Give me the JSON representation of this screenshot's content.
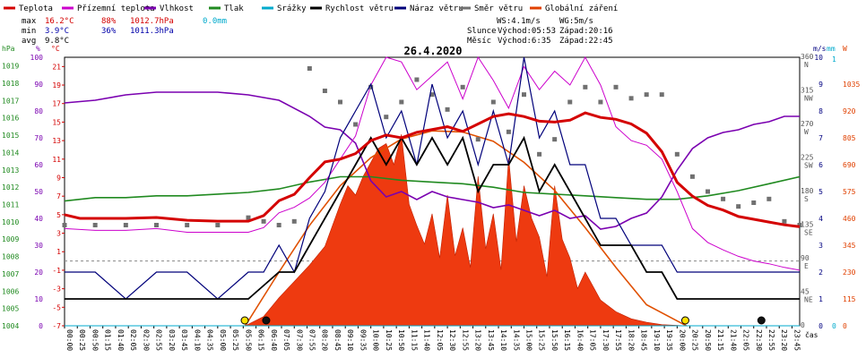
{
  "chart_data": {
    "type": "line",
    "title": "26.4.2020",
    "legend": [
      {
        "name": "Teplota",
        "color": "#d40000"
      },
      {
        "name": "Přízemní teplota",
        "color": "#cc00cc"
      },
      {
        "name": "Vlhkost",
        "color": "#7a00b0"
      },
      {
        "name": "Tlak",
        "color": "#208a20"
      },
      {
        "name": "Srážky",
        "color": "#00aacc"
      },
      {
        "name": "Rychlost větru",
        "color": "#000000"
      },
      {
        "name": "Náraz větru",
        "color": "#00007a"
      },
      {
        "name": "Směr větru",
        "color": "#707070"
      },
      {
        "name": "Globální záření",
        "color": "#e04000"
      }
    ],
    "stats": {
      "max": {
        "label": "max",
        "temp": "16.2°C",
        "hum": "88%",
        "press": "1012.7hPa",
        "rain": "0.0mm"
      },
      "min": {
        "label": "min",
        "temp": "3.9°C",
        "hum": "36%",
        "press": "1011.3hPa"
      },
      "avg": {
        "label": "avg",
        "temp": "9.8°C"
      }
    },
    "info": {
      "ws": "WS:4.1m/s",
      "wg": "WG:5m/s",
      "sun_label": "Slunce",
      "sunrise": "Východ:05:53",
      "sunset": "Západ:20:16",
      "moon_label": "Měsíc",
      "moonrise": "Východ:6:35",
      "moonset": "Západ:22:45"
    },
    "axes": {
      "hpa_title": "hPa",
      "hpa_ticks": [
        "1019",
        "1018",
        "1017",
        "1016",
        "1015",
        "1014",
        "1013",
        "1012",
        "1011",
        "1010",
        "1009",
        "1008",
        "1007",
        "1006",
        "1005",
        "1004"
      ],
      "pct_title": "%",
      "pct_ticks": [
        "100",
        "90",
        "80",
        "70",
        "60",
        "50",
        "40",
        "30",
        "20",
        "10",
        "0"
      ],
      "c_title": "°C",
      "c_ticks": [
        "21",
        "19",
        "17",
        "15",
        "13",
        "11",
        "9",
        "7",
        "5",
        "3",
        "1",
        "-1",
        "-3",
        "-5",
        "-7"
      ],
      "ms_title": "m/s",
      "ms_ticks": [
        "10",
        "9",
        "8",
        "7",
        "6",
        "5",
        "4",
        "3",
        "2",
        "1",
        "0"
      ],
      "mm_title": "mm",
      "mm_ticks": [
        "1",
        "0"
      ],
      "w_title": "W",
      "w_ticks": [
        "1035",
        "920",
        "805",
        "690",
        "575",
        "460",
        "345",
        "230",
        "115",
        "0"
      ],
      "dir_ticks": [
        [
          "360",
          "N"
        ],
        [
          "315",
          "NW"
        ],
        [
          "270",
          "W"
        ],
        [
          "225",
          "SW"
        ],
        [
          "180",
          "S"
        ],
        [
          "135",
          "SE"
        ],
        [
          "90",
          "E"
        ],
        [
          "45",
          "NE"
        ],
        [
          "0",
          ""
        ]
      ],
      "x_title": "čas",
      "ylim_temp": [
        -7,
        22
      ],
      "ylim_press": [
        1004,
        1019.5
      ],
      "ylim_wind": [
        0,
        10
      ],
      "ylim_rad": [
        0,
        1150
      ],
      "xlim_hours": [
        0,
        24
      ]
    },
    "x_ticks": [
      "00:00",
      "00:25",
      "00:50",
      "01:15",
      "01:40",
      "02:05",
      "02:30",
      "02:55",
      "03:20",
      "03:45",
      "04:10",
      "04:35",
      "05:00",
      "05:25",
      "05:50",
      "06:15",
      "06:40",
      "07:05",
      "07:30",
      "07:55",
      "08:20",
      "08:45",
      "09:10",
      "09:35",
      "10:00",
      "10:25",
      "10:50",
      "11:15",
      "11:40",
      "12:05",
      "12:30",
      "12:55",
      "13:20",
      "13:45",
      "14:10",
      "14:35",
      "15:00",
      "15:25",
      "15:50",
      "16:15",
      "16:40",
      "17:05",
      "17:30",
      "17:55",
      "18:20",
      "18:45",
      "19:10",
      "19:35",
      "20:00",
      "20:25",
      "20:50",
      "21:15",
      "21:40",
      "22:05",
      "22:30",
      "22:55",
      "23:20",
      "23:45"
    ],
    "series": {
      "temperature": {
        "name": "Teplota",
        "x": [
          0,
          0.5,
          1,
          2,
          3,
          4,
          5,
          6,
          6.5,
          7,
          7.5,
          8,
          8.5,
          9,
          9.5,
          10,
          10.5,
          11,
          11.5,
          12,
          12.5,
          13,
          13.5,
          14,
          14.5,
          15,
          15.5,
          16,
          16.5,
          17,
          17.5,
          18,
          18.5,
          19,
          19.5,
          20,
          20.5,
          21,
          21.5,
          22,
          22.5,
          23,
          23.5,
          24
        ],
        "y": [
          5.0,
          4.6,
          4.6,
          4.6,
          4.7,
          4.4,
          4.3,
          4.3,
          4.9,
          6.5,
          7.2,
          9.0,
          10.7,
          11.0,
          11.6,
          13.0,
          13.6,
          13.3,
          13.9,
          14.2,
          14.5,
          14.0,
          14.8,
          15.6,
          15.9,
          15.6,
          15.1,
          15.0,
          15.2,
          16.0,
          15.5,
          15.3,
          14.8,
          13.8,
          11.8,
          8.5,
          7.0,
          6.0,
          5.5,
          4.8,
          4.5,
          4.2,
          3.9,
          3.7
        ]
      },
      "ground_temperature": {
        "name": "Přízemní teplota",
        "x": [
          0,
          1,
          2,
          3,
          4,
          5,
          6,
          6.5,
          7,
          7.5,
          8,
          8.5,
          9,
          9.5,
          10,
          10.5,
          11,
          11.5,
          12,
          12.5,
          13,
          13.5,
          14,
          14.5,
          15,
          15.5,
          16,
          16.5,
          17,
          17.5,
          18,
          18.5,
          19,
          19.5,
          20,
          20.5,
          21,
          21.5,
          22,
          22.5,
          23,
          23.5,
          24
        ],
        "y": [
          3.5,
          3.3,
          3.3,
          3.5,
          3.1,
          3.1,
          3.1,
          3.6,
          5.2,
          5.8,
          6.8,
          8.5,
          11.0,
          13.5,
          19.0,
          22.0,
          21.5,
          18.5,
          20.0,
          21.5,
          17.5,
          22.0,
          19.5,
          16.5,
          21.0,
          18.5,
          20.5,
          19.0,
          22.0,
          19.0,
          14.5,
          13.0,
          12.5,
          11.0,
          7.5,
          3.5,
          2.0,
          1.2,
          0.5,
          0.0,
          -0.3,
          -0.7,
          -1.0
        ]
      },
      "humidity": {
        "name": "Vlhkost",
        "x": [
          0,
          1,
          2,
          3,
          4,
          5,
          6,
          7,
          8,
          8.5,
          9,
          9.5,
          10,
          10.5,
          11,
          11.5,
          12,
          12.5,
          13,
          13.5,
          14,
          14.5,
          15,
          15.5,
          16,
          16.5,
          17,
          17.5,
          18,
          18.5,
          19,
          19.5,
          20,
          20.5,
          21,
          21.5,
          22,
          22.5,
          23,
          23.5,
          24
        ],
        "y": [
          83,
          84,
          86,
          87,
          87,
          87,
          86,
          84,
          78,
          74,
          73,
          68,
          54,
          48,
          50,
          47,
          50,
          48,
          47,
          46,
          44,
          45,
          43,
          41,
          43,
          40,
          41,
          36,
          37,
          40,
          42,
          48,
          58,
          66,
          70,
          72,
          73,
          75,
          76,
          78,
          78
        ]
      },
      "pressure": {
        "name": "Tlak",
        "x": [
          0,
          1,
          2,
          3,
          4,
          5,
          6,
          7,
          8,
          9,
          10,
          11,
          12,
          13,
          14,
          15,
          16,
          17,
          18,
          19,
          20,
          21,
          22,
          23,
          24
        ],
        "y": [
          1011.2,
          1011.4,
          1011.4,
          1011.5,
          1011.5,
          1011.6,
          1011.7,
          1011.9,
          1012.3,
          1012.6,
          1012.6,
          1012.4,
          1012.3,
          1012.2,
          1012.0,
          1011.7,
          1011.6,
          1011.5,
          1011.4,
          1011.3,
          1011.3,
          1011.5,
          1011.8,
          1012.2,
          1012.6
        ]
      },
      "wind_speed": {
        "name": "Rychlost větru",
        "x": [
          0,
          2,
          3,
          4,
          5,
          6,
          6.5,
          7,
          7.5,
          8,
          8.5,
          9,
          9.5,
          10,
          10.5,
          11,
          11.5,
          12,
          12.5,
          13,
          13.5,
          14,
          14.5,
          15,
          15.5,
          16,
          16.5,
          17,
          17.5,
          18,
          18.5,
          19,
          19.5,
          20,
          21,
          22,
          23,
          24
        ],
        "y": [
          1,
          1,
          1,
          1,
          1,
          1,
          1.5,
          2,
          2,
          3,
          4,
          5,
          6,
          7,
          6,
          7,
          6,
          7,
          6,
          7,
          5,
          6,
          6,
          7,
          5,
          6,
          5,
          4,
          3,
          3,
          3,
          2,
          2,
          1,
          1,
          1,
          1,
          1
        ]
      },
      "wind_gust": {
        "name": "Náraz větru",
        "x": [
          0,
          1,
          2,
          3,
          4,
          5,
          6,
          6.5,
          7,
          7.5,
          8,
          8.5,
          9,
          9.5,
          10,
          10.5,
          11,
          11.5,
          12,
          12.5,
          13,
          13.5,
          14,
          14.5,
          15,
          15.5,
          16,
          16.5,
          17,
          17.5,
          18,
          18.5,
          19,
          19.5,
          20,
          21,
          22,
          23,
          24
        ],
        "y": [
          2,
          2,
          1,
          2,
          2,
          1,
          2,
          2,
          3,
          2,
          4,
          5,
          7,
          8,
          9,
          7,
          8,
          6,
          9,
          7,
          8,
          6,
          8,
          6,
          10,
          7,
          8,
          6,
          6,
          4,
          4,
          3,
          3,
          3,
          2,
          2,
          2,
          2,
          2
        ]
      },
      "wind_direction": {
        "name": "Směr větru",
        "x": [
          0,
          1,
          2,
          3,
          4,
          5,
          6,
          6.5,
          7,
          7.5,
          8,
          8.5,
          9,
          9.5,
          10,
          10.5,
          11,
          11.5,
          12,
          12.5,
          13,
          13.5,
          14,
          14.5,
          15,
          15.5,
          16,
          16.5,
          17,
          17.5,
          18,
          18.5,
          19,
          19.5,
          20,
          20.5,
          21,
          21.5,
          22,
          22.5,
          23,
          23.5,
          24
        ],
        "y": [
          135,
          135,
          135,
          135,
          135,
          135,
          145,
          140,
          135,
          140,
          345,
          315,
          300,
          270,
          320,
          280,
          300,
          330,
          310,
          290,
          320,
          250,
          300,
          260,
          310,
          230,
          250,
          300,
          320,
          300,
          320,
          305,
          310,
          310,
          230,
          200,
          180,
          170,
          160,
          165,
          170,
          140,
          135
        ]
      },
      "solar_radiation": {
        "name": "Globální záření",
        "x": [
          5.9,
          6.5,
          7,
          7.5,
          8,
          8.5,
          9,
          9.25,
          9.5,
          9.75,
          10,
          10.25,
          10.5,
          10.75,
          11,
          11.25,
          11.5,
          11.75,
          12,
          12.25,
          12.5,
          12.75,
          13,
          13.25,
          13.5,
          13.75,
          14,
          14.25,
          14.5,
          14.75,
          15,
          15.25,
          15.5,
          15.75,
          16,
          16.25,
          16.5,
          16.75,
          17,
          17.5,
          18,
          18.5,
          19,
          19.5,
          20,
          20.3
        ],
        "y": [
          0,
          40,
          120,
          190,
          260,
          340,
          520,
          600,
          560,
          640,
          700,
          760,
          780,
          690,
          820,
          520,
          430,
          350,
          480,
          290,
          560,
          300,
          420,
          250,
          640,
          330,
          480,
          240,
          720,
          360,
          600,
          460,
          380,
          210,
          600,
          370,
          290,
          160,
          230,
          110,
          60,
          30,
          15,
          5,
          2,
          0
        ]
      },
      "solar_theoretical": {
        "name": "Globální záření",
        "x": [
          5.9,
          7,
          8,
          9,
          10,
          11,
          12,
          13,
          14,
          15,
          16,
          17,
          18,
          19,
          20.3
        ],
        "y": [
          0,
          230,
          430,
          600,
          720,
          800,
          835,
          830,
          790,
          700,
          580,
          420,
          250,
          90,
          0
        ]
      },
      "rain": {
        "name": "Srážky",
        "x": [
          0,
          24
        ],
        "y": [
          0,
          0
        ]
      }
    }
  }
}
